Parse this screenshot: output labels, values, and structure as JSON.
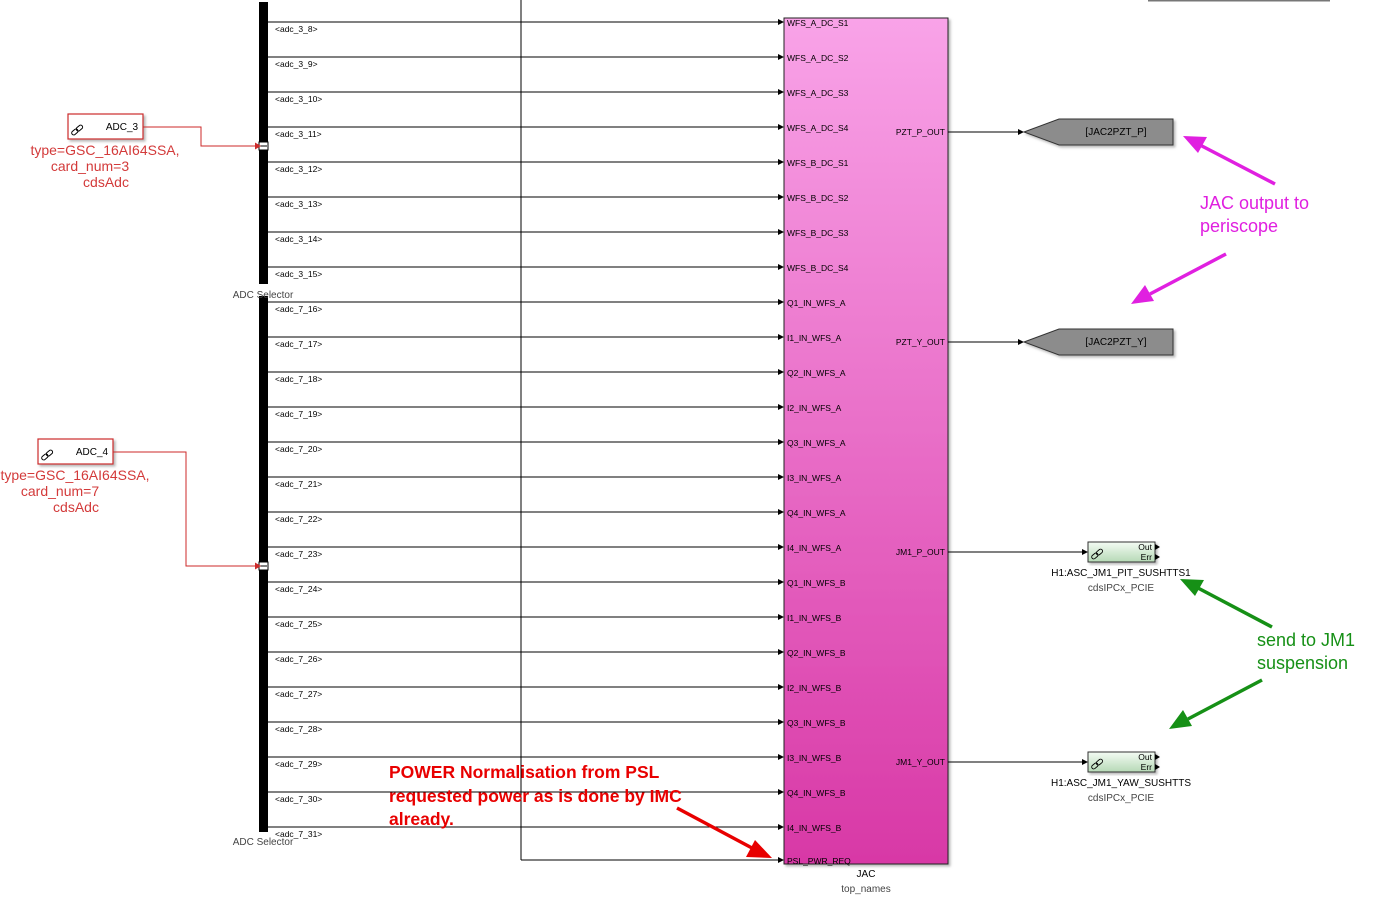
{
  "adc_blocks": [
    {
      "label": "ADC_3",
      "type_line": "type=GSC_16AI64SSA,",
      "card_line": "card_num=3",
      "lib": "cdsAdc"
    },
    {
      "label": "ADC_4",
      "type_line": "type=GSC_16AI64SSA,",
      "card_line": "card_num=7",
      "lib": "cdsAdc"
    }
  ],
  "selectors": [
    {
      "label": "ADC Selector",
      "signals": [
        "<adc_3_8>",
        "<adc_3_9>",
        "<adc_3_10>",
        "<adc_3_11>",
        "<adc_3_12>",
        "<adc_3_13>",
        "<adc_3_14>",
        "<adc_3_15>"
      ]
    },
    {
      "label": "ADC Selector",
      "signals": [
        "<adc_7_16>",
        "<adc_7_17>",
        "<adc_7_18>",
        "<adc_7_19>",
        "<adc_7_20>",
        "<adc_7_21>",
        "<adc_7_22>",
        "<adc_7_23>",
        "<adc_7_24>",
        "<adc_7_25>",
        "<adc_7_26>",
        "<adc_7_27>",
        "<adc_7_28>",
        "<adc_7_29>",
        "<adc_7_30>",
        "<adc_7_31>"
      ]
    }
  ],
  "jac_block": {
    "name": "JAC",
    "subtitle": "top_names",
    "fill_top": "#f9a3e8",
    "fill_bottom": "#d838a6",
    "inputs": [
      "WFS_A_DC_S1",
      "WFS_A_DC_S2",
      "WFS_A_DC_S3",
      "WFS_A_DC_S4",
      "WFS_B_DC_S1",
      "WFS_B_DC_S2",
      "WFS_B_DC_S3",
      "WFS_B_DC_S4",
      "Q1_IN_WFS_A",
      "I1_IN_WFS_A",
      "Q2_IN_WFS_A",
      "I2_IN_WFS_A",
      "Q3_IN_WFS_A",
      "I3_IN_WFS_A",
      "Q4_IN_WFS_A",
      "I4_IN_WFS_A",
      "Q1_IN_WFS_B",
      "I1_IN_WFS_B",
      "Q2_IN_WFS_B",
      "I2_IN_WFS_B",
      "Q3_IN_WFS_B",
      "I3_IN_WFS_B",
      "Q4_IN_WFS_B",
      "I4_IN_WFS_B",
      "PSL_PWR_REQ"
    ],
    "outputs": [
      {
        "label": "PZT_P_OUT",
        "port_index": 3
      },
      {
        "label": "PZT_Y_OUT",
        "port_index": 9
      },
      {
        "label": "JM1_P_OUT",
        "port_index": 15
      },
      {
        "label": "JM1_Y_OUT",
        "port_index": 21
      }
    ]
  },
  "goto_tags": [
    {
      "label": "[JAC2PZT_P]",
      "output_index": 0
    },
    {
      "label": "[JAC2PZT_Y]",
      "output_index": 1
    }
  ],
  "ipc_blocks": [
    {
      "out_label": "Out",
      "err_label": "Err",
      "name": "H1:ASC_JM1_PIT_SUSHTTS1",
      "lib": "cdsIPCx_PCIE",
      "output_index": 2
    },
    {
      "out_label": "Out",
      "err_label": "Err",
      "name": "H1:ASC_JM1_YAW_SUSHTTS",
      "lib": "cdsIPCx_PCIE",
      "output_index": 3
    }
  ],
  "annotations": {
    "periscope": {
      "lines": [
        "JAC output to",
        "periscope"
      ],
      "color": "#e020e0"
    },
    "jm1": {
      "lines": [
        "send to JM1",
        "suspension"
      ],
      "color": "#169016"
    },
    "power": {
      "lines": [
        "POWER Normalisation from PSL",
        "requested power as is done by IMC",
        "already."
      ],
      "color": "#e80000"
    }
  }
}
